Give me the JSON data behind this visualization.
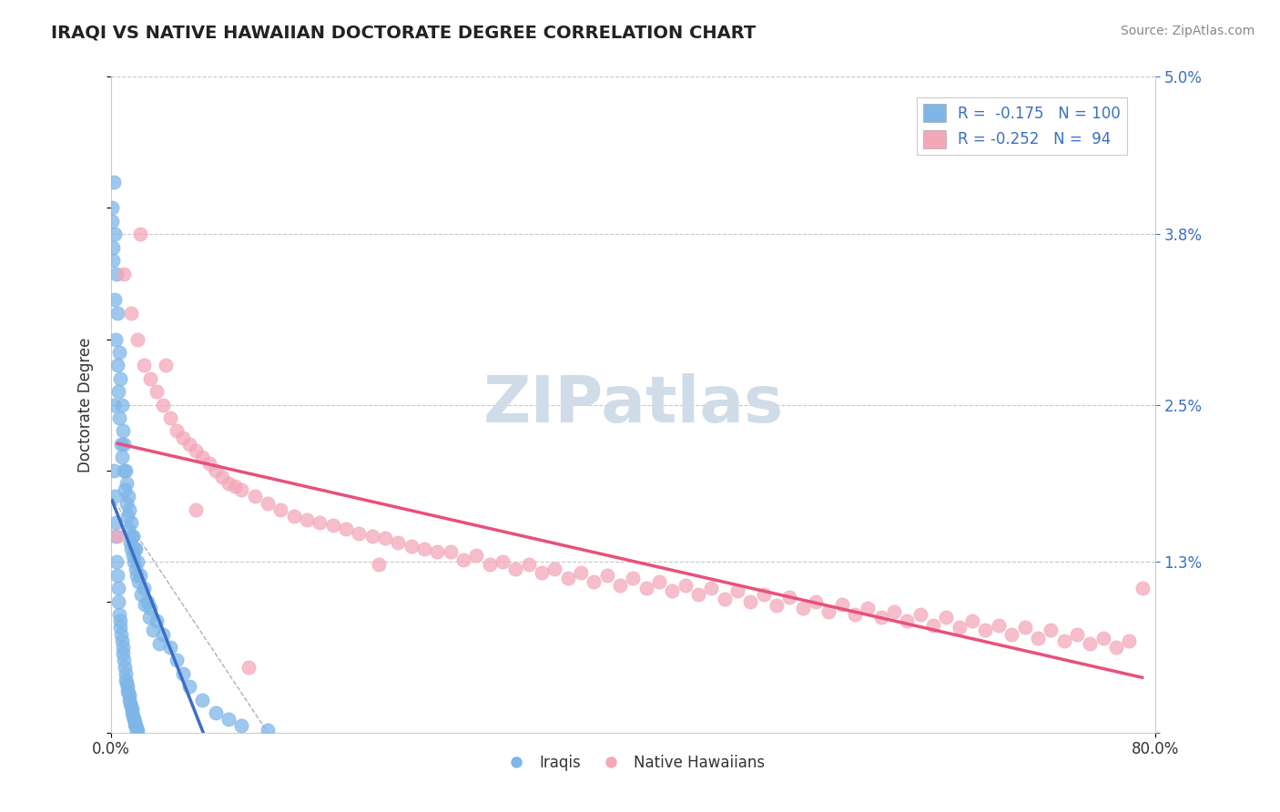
{
  "title": "IRAQI VS NATIVE HAWAIIAN DOCTORATE DEGREE CORRELATION CHART",
  "source_text": "Source: ZipAtlas.com",
  "ylabel": "Doctorate Degree",
  "xlim": [
    0.0,
    80.0
  ],
  "ylim": [
    0.0,
    5.0
  ],
  "iraqi_color": "#7eb6e8",
  "native_hawaiian_color": "#f4a7b9",
  "iraqi_line_color": "#3a6fc4",
  "native_hawaiian_line_color": "#e8507a",
  "iraqi_R": -0.175,
  "iraqi_N": 100,
  "native_hawaiian_R": -0.252,
  "native_hawaiian_N": 94,
  "background_color": "#ffffff",
  "grid_color": "#c8c8c8",
  "watermark_text": "ZIPatlas",
  "watermark_color": "#d0dce8",
  "legend_text_color": "#3a6fc4",
  "iraqi_scatter_x": [
    0.2,
    0.3,
    0.4,
    0.5,
    0.6,
    0.7,
    0.8,
    0.9,
    1.0,
    1.1,
    1.2,
    1.3,
    1.4,
    1.5,
    1.6,
    1.7,
    1.8,
    1.9,
    2.0,
    2.2,
    2.5,
    2.8,
    3.0,
    3.5,
    4.0,
    4.5,
    5.0,
    5.5,
    6.0,
    7.0,
    8.0,
    9.0,
    10.0,
    12.0,
    0.1,
    0.15,
    0.25,
    0.35,
    0.45,
    0.55,
    0.65,
    0.75,
    0.85,
    0.95,
    1.05,
    1.15,
    1.25,
    1.35,
    1.45,
    1.55,
    1.65,
    1.75,
    1.85,
    1.95,
    2.1,
    2.3,
    2.6,
    2.9,
    3.2,
    3.7,
    0.08,
    0.12,
    0.18,
    0.22,
    0.28,
    0.32,
    0.38,
    0.42,
    0.48,
    0.52,
    0.58,
    0.62,
    0.68,
    0.72,
    0.78,
    0.82,
    0.88,
    0.92,
    0.98,
    1.02,
    1.08,
    1.12,
    1.18,
    1.22,
    1.28,
    1.32,
    1.38,
    1.42,
    1.48,
    1.52,
    1.58,
    1.62,
    1.68,
    1.72,
    1.78,
    1.82,
    1.88,
    1.92,
    1.98,
    2.05
  ],
  "iraqi_scatter_y": [
    4.2,
    3.8,
    3.5,
    3.2,
    2.9,
    2.7,
    2.5,
    2.3,
    2.2,
    2.0,
    1.9,
    1.8,
    1.7,
    1.6,
    1.5,
    1.5,
    1.4,
    1.4,
    1.3,
    1.2,
    1.1,
    1.0,
    0.95,
    0.85,
    0.75,
    0.65,
    0.55,
    0.45,
    0.35,
    0.25,
    0.15,
    0.1,
    0.05,
    0.02,
    3.9,
    3.6,
    3.3,
    3.0,
    2.8,
    2.6,
    2.4,
    2.2,
    2.1,
    2.0,
    1.85,
    1.75,
    1.65,
    1.55,
    1.45,
    1.4,
    1.35,
    1.3,
    1.25,
    1.2,
    1.15,
    1.05,
    0.98,
    0.88,
    0.78,
    0.68,
    4.0,
    3.7,
    2.5,
    2.0,
    1.8,
    1.6,
    1.5,
    1.3,
    1.2,
    1.1,
    1.0,
    0.9,
    0.85,
    0.8,
    0.75,
    0.7,
    0.65,
    0.6,
    0.55,
    0.5,
    0.45,
    0.4,
    0.38,
    0.35,
    0.32,
    0.3,
    0.28,
    0.25,
    0.22,
    0.2,
    0.18,
    0.15,
    0.12,
    0.1,
    0.08,
    0.06,
    0.05,
    0.03,
    0.02,
    0.01
  ],
  "native_hawaiian_scatter_x": [
    1.0,
    2.0,
    3.0,
    4.0,
    5.0,
    6.0,
    7.0,
    8.0,
    9.0,
    10.0,
    12.0,
    14.0,
    16.0,
    18.0,
    20.0,
    22.0,
    24.0,
    26.0,
    28.0,
    30.0,
    32.0,
    34.0,
    36.0,
    38.0,
    40.0,
    42.0,
    44.0,
    46.0,
    48.0,
    50.0,
    52.0,
    54.0,
    56.0,
    58.0,
    60.0,
    62.0,
    64.0,
    66.0,
    68.0,
    70.0,
    72.0,
    74.0,
    76.0,
    78.0,
    1.5,
    2.5,
    3.5,
    4.5,
    5.5,
    6.5,
    7.5,
    8.5,
    9.5,
    11.0,
    13.0,
    15.0,
    17.0,
    19.0,
    21.0,
    23.0,
    25.0,
    27.0,
    29.0,
    31.0,
    33.0,
    35.0,
    37.0,
    39.0,
    41.0,
    43.0,
    45.0,
    47.0,
    49.0,
    51.0,
    53.0,
    55.0,
    57.0,
    59.0,
    61.0,
    63.0,
    65.0,
    67.0,
    69.0,
    71.0,
    73.0,
    75.0,
    77.0,
    79.0,
    0.5,
    2.2,
    4.2,
    6.5,
    10.5,
    20.5
  ],
  "native_hawaiian_scatter_y": [
    3.5,
    3.0,
    2.7,
    2.5,
    2.3,
    2.2,
    2.1,
    2.0,
    1.9,
    1.85,
    1.75,
    1.65,
    1.6,
    1.55,
    1.5,
    1.45,
    1.4,
    1.38,
    1.35,
    1.3,
    1.28,
    1.25,
    1.22,
    1.2,
    1.18,
    1.15,
    1.12,
    1.1,
    1.08,
    1.05,
    1.03,
    1.0,
    0.98,
    0.95,
    0.92,
    0.9,
    0.88,
    0.85,
    0.82,
    0.8,
    0.78,
    0.75,
    0.72,
    0.7,
    3.2,
    2.8,
    2.6,
    2.4,
    2.25,
    2.15,
    2.05,
    1.95,
    1.88,
    1.8,
    1.7,
    1.62,
    1.58,
    1.52,
    1.48,
    1.42,
    1.38,
    1.32,
    1.28,
    1.25,
    1.22,
    1.18,
    1.15,
    1.12,
    1.1,
    1.08,
    1.05,
    1.02,
    1.0,
    0.97,
    0.95,
    0.92,
    0.9,
    0.88,
    0.85,
    0.82,
    0.8,
    0.78,
    0.75,
    0.72,
    0.7,
    0.68,
    0.65,
    1.1,
    1.5,
    3.8,
    2.8,
    1.7,
    0.5,
    1.28
  ]
}
